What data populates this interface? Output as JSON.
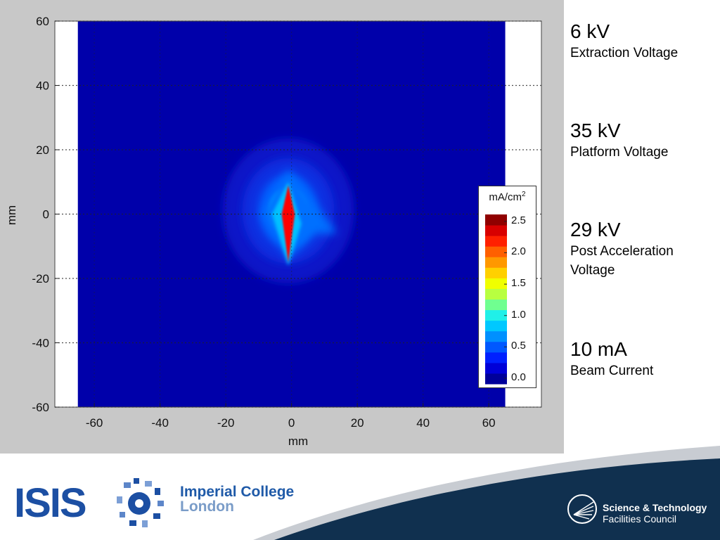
{
  "chart_data": {
    "type": "heatmap",
    "title": "",
    "xlabel": "mm",
    "ylabel": "mm",
    "xlim": [
      -72,
      76
    ],
    "ylim": [
      -60,
      60
    ],
    "data_extent_x": [
      -65,
      65
    ],
    "data_extent_y": [
      -60,
      60
    ],
    "x_ticks": [
      "-60",
      "-40",
      "-20",
      "0",
      "20",
      "40",
      "60"
    ],
    "y_ticks": [
      "60",
      "40",
      "20",
      "0",
      "-20",
      "-40",
      "-60"
    ],
    "grid": "dotted",
    "colormap": "jet",
    "background_color": "#0000aa",
    "beam_center_mm": [
      -1,
      1
    ],
    "peak_current_density": 2.6,
    "colorbar": {
      "label": "mA/cm",
      "label_superscript": "2",
      "ticks": [
        "2.5",
        "2.0",
        "1.5",
        "1.0",
        "0.5",
        "0.0"
      ],
      "range": [
        0,
        2.7
      ],
      "colors": [
        "#00009a",
        "#0000d8",
        "#0020ff",
        "#0058ff",
        "#0090ff",
        "#00c8ff",
        "#20f0e8",
        "#70ff90",
        "#b8ff40",
        "#f0ff00",
        "#ffd000",
        "#ff9800",
        "#ff6000",
        "#ff2000",
        "#d80000",
        "#900000"
      ]
    }
  },
  "parameters": [
    {
      "value": "6 kV",
      "label_lines": [
        "Extraction Voltage"
      ]
    },
    {
      "value": "35 kV",
      "label_lines": [
        "Platform Voltage"
      ]
    },
    {
      "value": "29 kV",
      "label_lines": [
        "Post Acceleration",
        "Voltage"
      ]
    },
    {
      "value": "10 mA",
      "label_lines": [
        "Beam Current"
      ]
    }
  ],
  "logos": {
    "isis": "ISIS",
    "imperial_line1": "Imperial College",
    "imperial_line2": "London",
    "stfc_line1": "Science & Technology",
    "stfc_line2": "Facilities Council"
  },
  "colors": {
    "footer_navy": "#10304f",
    "footer_grey": "#c8ccd2",
    "isis_blue": "#1c4fa3",
    "imperial_blue": "#1f5aa8"
  }
}
